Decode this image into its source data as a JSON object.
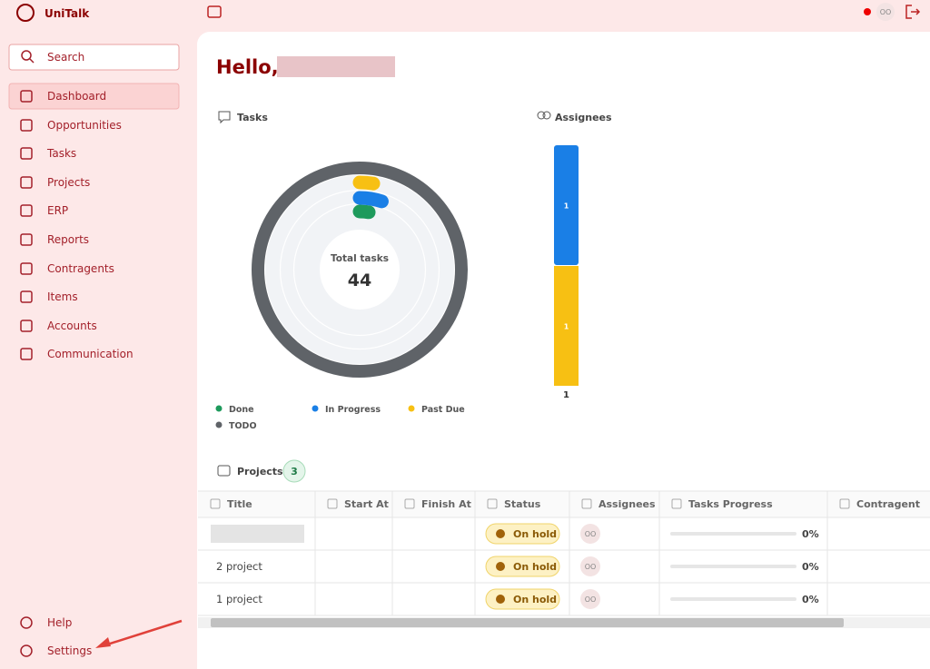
{
  "header": {
    "brand": "UniTalk",
    "avatar": "OO"
  },
  "search": {
    "placeholder": "Search"
  },
  "nav": {
    "items": [
      "Dashboard",
      "Opportunities",
      "Tasks",
      "Projects",
      "ERP",
      "Reports",
      "Contragents",
      "Items",
      "Accounts",
      "Communication"
    ],
    "active": 0
  },
  "footer_nav": {
    "items": [
      "Help",
      "Settings"
    ]
  },
  "greeting": "Hello,",
  "tasks_chart": {
    "type": "radial",
    "title": "Tasks",
    "center_label": "Total tasks",
    "total": 44,
    "series": [
      {
        "name": "Done",
        "color": "#1e9a5c",
        "values": [
          1
        ]
      },
      {
        "name": "In Progress",
        "color": "#1a7fe6",
        "values": [
          2
        ]
      },
      {
        "name": "Past Due",
        "color": "#f7c013",
        "values": [
          1
        ]
      },
      {
        "name": "TODO",
        "color": "#5f6368",
        "values": [
          40
        ]
      }
    ]
  },
  "assignees_chart": {
    "type": "stacked-bar",
    "title": "Assignees",
    "categories": [
      "1"
    ],
    "series": [
      {
        "color": "#f7c013",
        "values": [
          1
        ]
      },
      {
        "color": "#1a7fe6",
        "values": [
          1
        ]
      }
    ]
  },
  "projects": {
    "title": "Projects",
    "count": 3
  },
  "table": {
    "columns": [
      "Title",
      "Start At",
      "Finish At",
      "Status",
      "Assignees",
      "Tasks Progress",
      "Contragent"
    ],
    "rows": [
      {
        "title": null,
        "status": "On hold",
        "assignees": "OO",
        "progress": "0%"
      },
      {
        "title": "2 project",
        "status": "On hold",
        "assignees": "OO",
        "progress": "0%"
      },
      {
        "title": "1 project",
        "status": "On hold",
        "assignees": "OO",
        "progress": "0%"
      }
    ]
  }
}
